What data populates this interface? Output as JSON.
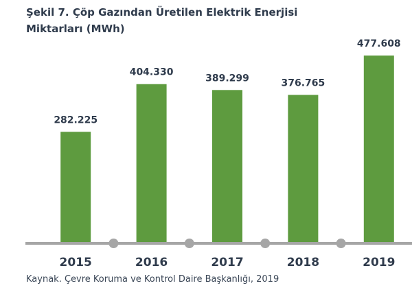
{
  "chart_data": {
    "type": "bar",
    "title": "Şekil 7. Çöp Gazından Üretilen Elektrik Enerjisi Miktarları (MWh)",
    "categories": [
      "2015",
      "2016",
      "2017",
      "2018",
      "2019"
    ],
    "values": [
      282225,
      404330,
      389299,
      376765,
      477608
    ],
    "value_labels": [
      "282.225",
      "404.330",
      "389.299",
      "376.765",
      "477.608"
    ],
    "color": "#5e9b3f",
    "source": "Kaynak. Çevre Koruma ve Kontrol Daire Başkanlığı, 2019"
  }
}
